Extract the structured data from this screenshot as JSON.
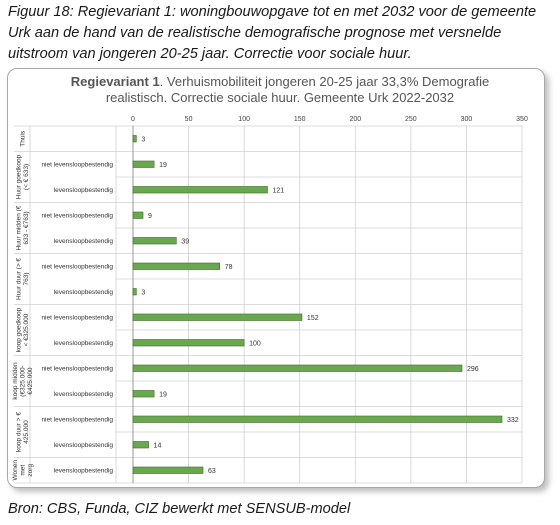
{
  "caption_lines": [
    "Figuur 18: Regievariant 1: woningbouwopgave tot en met 2032 voor de gemeente",
    "Urk aan de hand van de realistische demografische prognose met versnelde",
    "uitstroom van jongeren 20-25 jaar.  Correctie voor sociale huur."
  ],
  "source": "Bron: CBS, Funda, CIZ bewerkt met SENSUB-model",
  "colors": {
    "bar": "#6aa84f",
    "bar_border": "#3d6b23",
    "grid": "#d0d0d0",
    "title": "#555555"
  },
  "chart_data": {
    "type": "bar",
    "orientation": "horizontal",
    "title_bold": "Regievariant 1",
    "title_line1_rest": ". Verhuismobiliteit jongeren 20-25 jaar 33,3% Demografie",
    "title_line2": "realistisch. Correctie sociale huur. Gemeente Urk 2022-2032",
    "xlim": [
      0,
      350
    ],
    "xticks": [
      "0",
      "50",
      "100",
      "150",
      "200",
      "250",
      "300",
      "350"
    ],
    "grid": true,
    "legend": "none",
    "groups": [
      {
        "label": [
          "Thuis"
        ],
        "rows": [
          {
            "category": "",
            "value": 3
          }
        ]
      },
      {
        "label": [
          "Huur goedkoop",
          "(< € 633)"
        ],
        "rows": [
          {
            "category": "niet levensloopbestendig",
            "value": 19
          },
          {
            "category": "levensloopbestendig",
            "value": 121
          }
        ]
      },
      {
        "label": [
          "Huur midden (€",
          "633 - €763)"
        ],
        "rows": [
          {
            "category": "niet levensloopbestendig",
            "value": 9
          },
          {
            "category": "levensloopbestendig",
            "value": 39
          }
        ]
      },
      {
        "label": [
          "Huur duur (> €",
          "763)"
        ],
        "rows": [
          {
            "category": "niet levensloopbestendig",
            "value": 78
          },
          {
            "category": "levensloopbestendig",
            "value": 3
          }
        ]
      },
      {
        "label": [
          "koop goedkoop",
          "< €325.000"
        ],
        "rows": [
          {
            "category": "niet levensloopbestendig",
            "value": 152
          },
          {
            "category": "levensloopbestendig",
            "value": 100
          }
        ]
      },
      {
        "label": [
          "koop midden",
          "(€325.000-",
          "€425.000"
        ],
        "rows": [
          {
            "category": "niet levensloopbestendig",
            "value": 296
          },
          {
            "category": "levensloopbestendig",
            "value": 19
          }
        ]
      },
      {
        "label": [
          "koop duur > €",
          "425.000"
        ],
        "rows": [
          {
            "category": "niet levensloopbestendig",
            "value": 332
          },
          {
            "category": "levensloopbestendig",
            "value": 14
          }
        ]
      },
      {
        "label": [
          "Wonen",
          "met",
          "zorg"
        ],
        "rows": [
          {
            "category": "levensloopbestendig",
            "value": 63
          }
        ]
      }
    ]
  }
}
